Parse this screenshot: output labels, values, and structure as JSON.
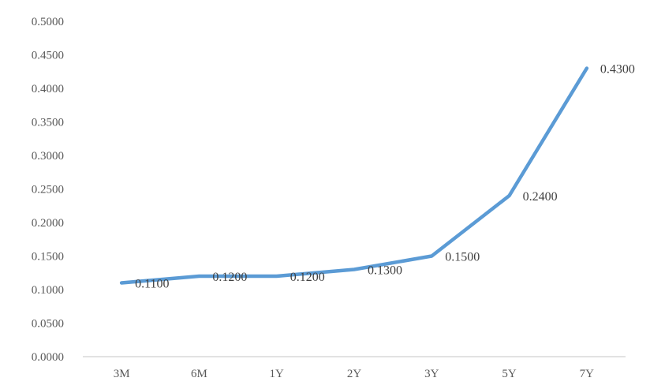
{
  "chart_data": {
    "type": "line",
    "title": "",
    "xlabel": "",
    "ylabel": "",
    "categories": [
      "3M",
      "6M",
      "1Y",
      "2Y",
      "3Y",
      "5Y",
      "7Y"
    ],
    "series": [
      {
        "values": [
          0.11,
          0.12,
          0.12,
          0.13,
          0.15,
          0.24,
          0.43
        ],
        "data_labels": [
          "0.1100",
          "0.1200",
          "0.1200",
          "0.1300",
          "0.1500",
          "0.2400",
          "0.4300"
        ]
      }
    ],
    "ylim": [
      0,
      0.5
    ],
    "y_ticks": [
      0,
      0.05,
      0.1,
      0.15,
      0.2,
      0.25,
      0.3,
      0.35,
      0.4,
      0.45,
      0.5
    ],
    "y_tick_labels": [
      "0.0000",
      "0.0500",
      "0.1000",
      "0.1500",
      "0.2000",
      "0.2500",
      "0.3000",
      "0.3500",
      "0.4000",
      "0.4500",
      "0.5000"
    ],
    "grid": false,
    "legend": "none",
    "line_color": "#5b9bd5",
    "axis_color": "#d9d9d9"
  }
}
